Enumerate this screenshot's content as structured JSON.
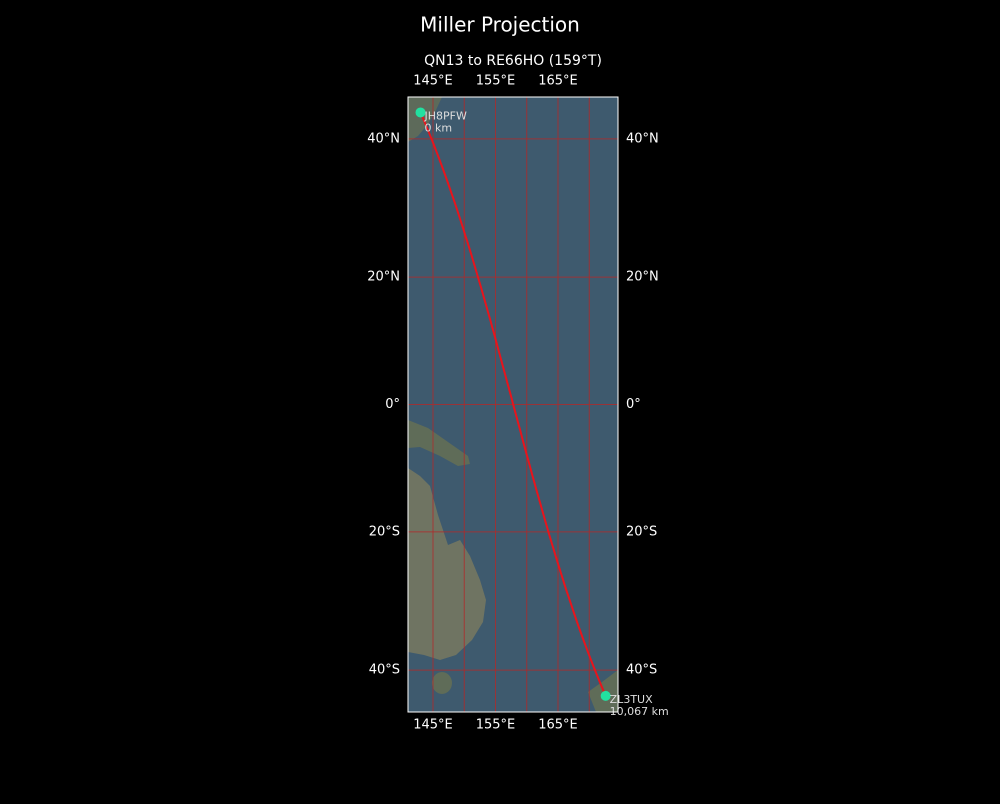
{
  "map": {
    "title": "Miller Projection",
    "subtitle": "QN13 to RE66HO (159°T)",
    "projection": "miller",
    "lonlim": [
      141,
      174.6
    ],
    "latlim": [
      -45.5,
      45.5
    ],
    "lon_ticks": [
      {
        "value": 145,
        "label": "145°E"
      },
      {
        "value": 155,
        "label": "155°E"
      },
      {
        "value": 165,
        "label": "165°E"
      }
    ],
    "lon_grid": [
      145,
      150,
      155,
      160,
      165,
      170
    ],
    "lat_ticks": [
      {
        "value": 40,
        "label": "40°N"
      },
      {
        "value": 20,
        "label": "20°N"
      },
      {
        "value": 0,
        "label": "0°"
      },
      {
        "value": -20,
        "label": "20°S"
      },
      {
        "value": -40,
        "label": "40°S"
      }
    ],
    "route_color": "#e8141c",
    "grid_color": "#b02a2a",
    "point_color": "#22e0a0",
    "points": [
      {
        "label": "JH8PFW",
        "distance_label": "0 km",
        "lon": 143,
        "lat": 43.5
      },
      {
        "label": "ZL3TUX",
        "distance_label": "10,067 km",
        "lon": 172.625,
        "lat": -43.417
      }
    ]
  }
}
